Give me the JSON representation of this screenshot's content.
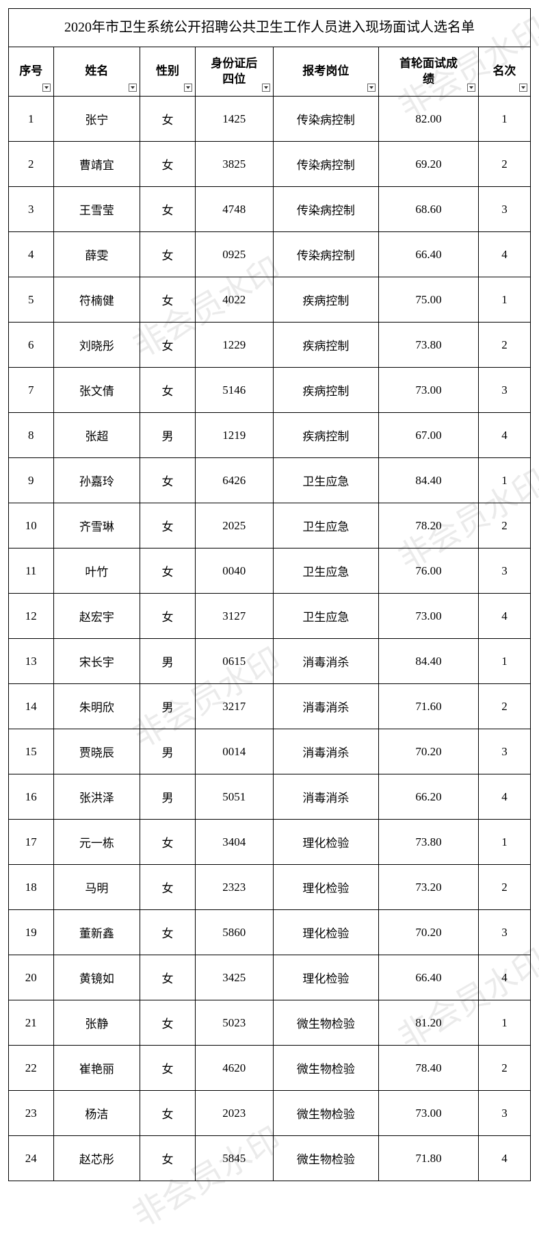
{
  "title": "2020年市卫生系统公开招聘公共卫生工作人员进入现场面试人选名单",
  "watermark_text": "非会员水印",
  "columns": [
    {
      "key": "seq",
      "label": "序号",
      "class": "col-seq"
    },
    {
      "key": "name",
      "label": "姓名",
      "class": "col-name"
    },
    {
      "key": "gender",
      "label": "性别",
      "class": "col-gender"
    },
    {
      "key": "id4",
      "label": "身份证后\n四位",
      "class": "col-id"
    },
    {
      "key": "position",
      "label": "报考岗位",
      "class": "col-position"
    },
    {
      "key": "score",
      "label": "首轮面试成\n绩",
      "class": "col-score"
    },
    {
      "key": "rank",
      "label": "名次",
      "class": "col-rank"
    }
  ],
  "rows": [
    {
      "seq": "1",
      "name": "张宁",
      "gender": "女",
      "id4": "1425",
      "position": "传染病控制",
      "score": "82.00",
      "rank": "1"
    },
    {
      "seq": "2",
      "name": "曹靖宜",
      "gender": "女",
      "id4": "3825",
      "position": "传染病控制",
      "score": "69.20",
      "rank": "2"
    },
    {
      "seq": "3",
      "name": "王雪莹",
      "gender": "女",
      "id4": "4748",
      "position": "传染病控制",
      "score": "68.60",
      "rank": "3"
    },
    {
      "seq": "4",
      "name": "薛雯",
      "gender": "女",
      "id4": "0925",
      "position": "传染病控制",
      "score": "66.40",
      "rank": "4"
    },
    {
      "seq": "5",
      "name": "符楠健",
      "gender": "女",
      "id4": "4022",
      "position": "疾病控制",
      "score": "75.00",
      "rank": "1"
    },
    {
      "seq": "6",
      "name": "刘晓彤",
      "gender": "女",
      "id4": "1229",
      "position": "疾病控制",
      "score": "73.80",
      "rank": "2"
    },
    {
      "seq": "7",
      "name": "张文倩",
      "gender": "女",
      "id4": "5146",
      "position": "疾病控制",
      "score": "73.00",
      "rank": "3"
    },
    {
      "seq": "8",
      "name": "张超",
      "gender": "男",
      "id4": "1219",
      "position": "疾病控制",
      "score": "67.00",
      "rank": "4"
    },
    {
      "seq": "9",
      "name": "孙嘉玲",
      "gender": "女",
      "id4": "6426",
      "position": "卫生应急",
      "score": "84.40",
      "rank": "1"
    },
    {
      "seq": "10",
      "name": "齐雪琳",
      "gender": "女",
      "id4": "2025",
      "position": "卫生应急",
      "score": "78.20",
      "rank": "2"
    },
    {
      "seq": "11",
      "name": "叶竹",
      "gender": "女",
      "id4": "0040",
      "position": "卫生应急",
      "score": "76.00",
      "rank": "3"
    },
    {
      "seq": "12",
      "name": "赵宏宇",
      "gender": "女",
      "id4": "3127",
      "position": "卫生应急",
      "score": "73.00",
      "rank": "4"
    },
    {
      "seq": "13",
      "name": "宋长宇",
      "gender": "男",
      "id4": "0615",
      "position": "消毒消杀",
      "score": "84.40",
      "rank": "1"
    },
    {
      "seq": "14",
      "name": "朱明欣",
      "gender": "男",
      "id4": "3217",
      "position": "消毒消杀",
      "score": "71.60",
      "rank": "2"
    },
    {
      "seq": "15",
      "name": "贾晓辰",
      "gender": "男",
      "id4": "0014",
      "position": "消毒消杀",
      "score": "70.20",
      "rank": "3"
    },
    {
      "seq": "16",
      "name": "张洪泽",
      "gender": "男",
      "id4": "5051",
      "position": "消毒消杀",
      "score": "66.20",
      "rank": "4"
    },
    {
      "seq": "17",
      "name": "元一栋",
      "gender": "女",
      "id4": "3404",
      "position": "理化检验",
      "score": "73.80",
      "rank": "1"
    },
    {
      "seq": "18",
      "name": "马明",
      "gender": "女",
      "id4": "2323",
      "position": "理化检验",
      "score": "73.20",
      "rank": "2"
    },
    {
      "seq": "19",
      "name": "董新鑫",
      "gender": "女",
      "id4": "5860",
      "position": "理化检验",
      "score": "70.20",
      "rank": "3"
    },
    {
      "seq": "20",
      "name": "黄镜如",
      "gender": "女",
      "id4": "3425",
      "position": "理化检验",
      "score": "66.40",
      "rank": "4"
    },
    {
      "seq": "21",
      "name": "张静",
      "gender": "女",
      "id4": "5023",
      "position": "微生物检验",
      "score": "81.20",
      "rank": "1"
    },
    {
      "seq": "22",
      "name": "崔艳丽",
      "gender": "女",
      "id4": "4620",
      "position": "微生物检验",
      "score": "78.40",
      "rank": "2"
    },
    {
      "seq": "23",
      "name": "杨洁",
      "gender": "女",
      "id4": "2023",
      "position": "微生物检验",
      "score": "73.00",
      "rank": "3"
    },
    {
      "seq": "24",
      "name": "赵芯彤",
      "gender": "女",
      "id4": "5845",
      "position": "微生物检验",
      "score": "71.80",
      "rank": "4"
    }
  ],
  "colors": {
    "border": "#000000",
    "text": "#000000",
    "background": "#ffffff",
    "watermark": "rgba(0,0,0,0.08)"
  }
}
